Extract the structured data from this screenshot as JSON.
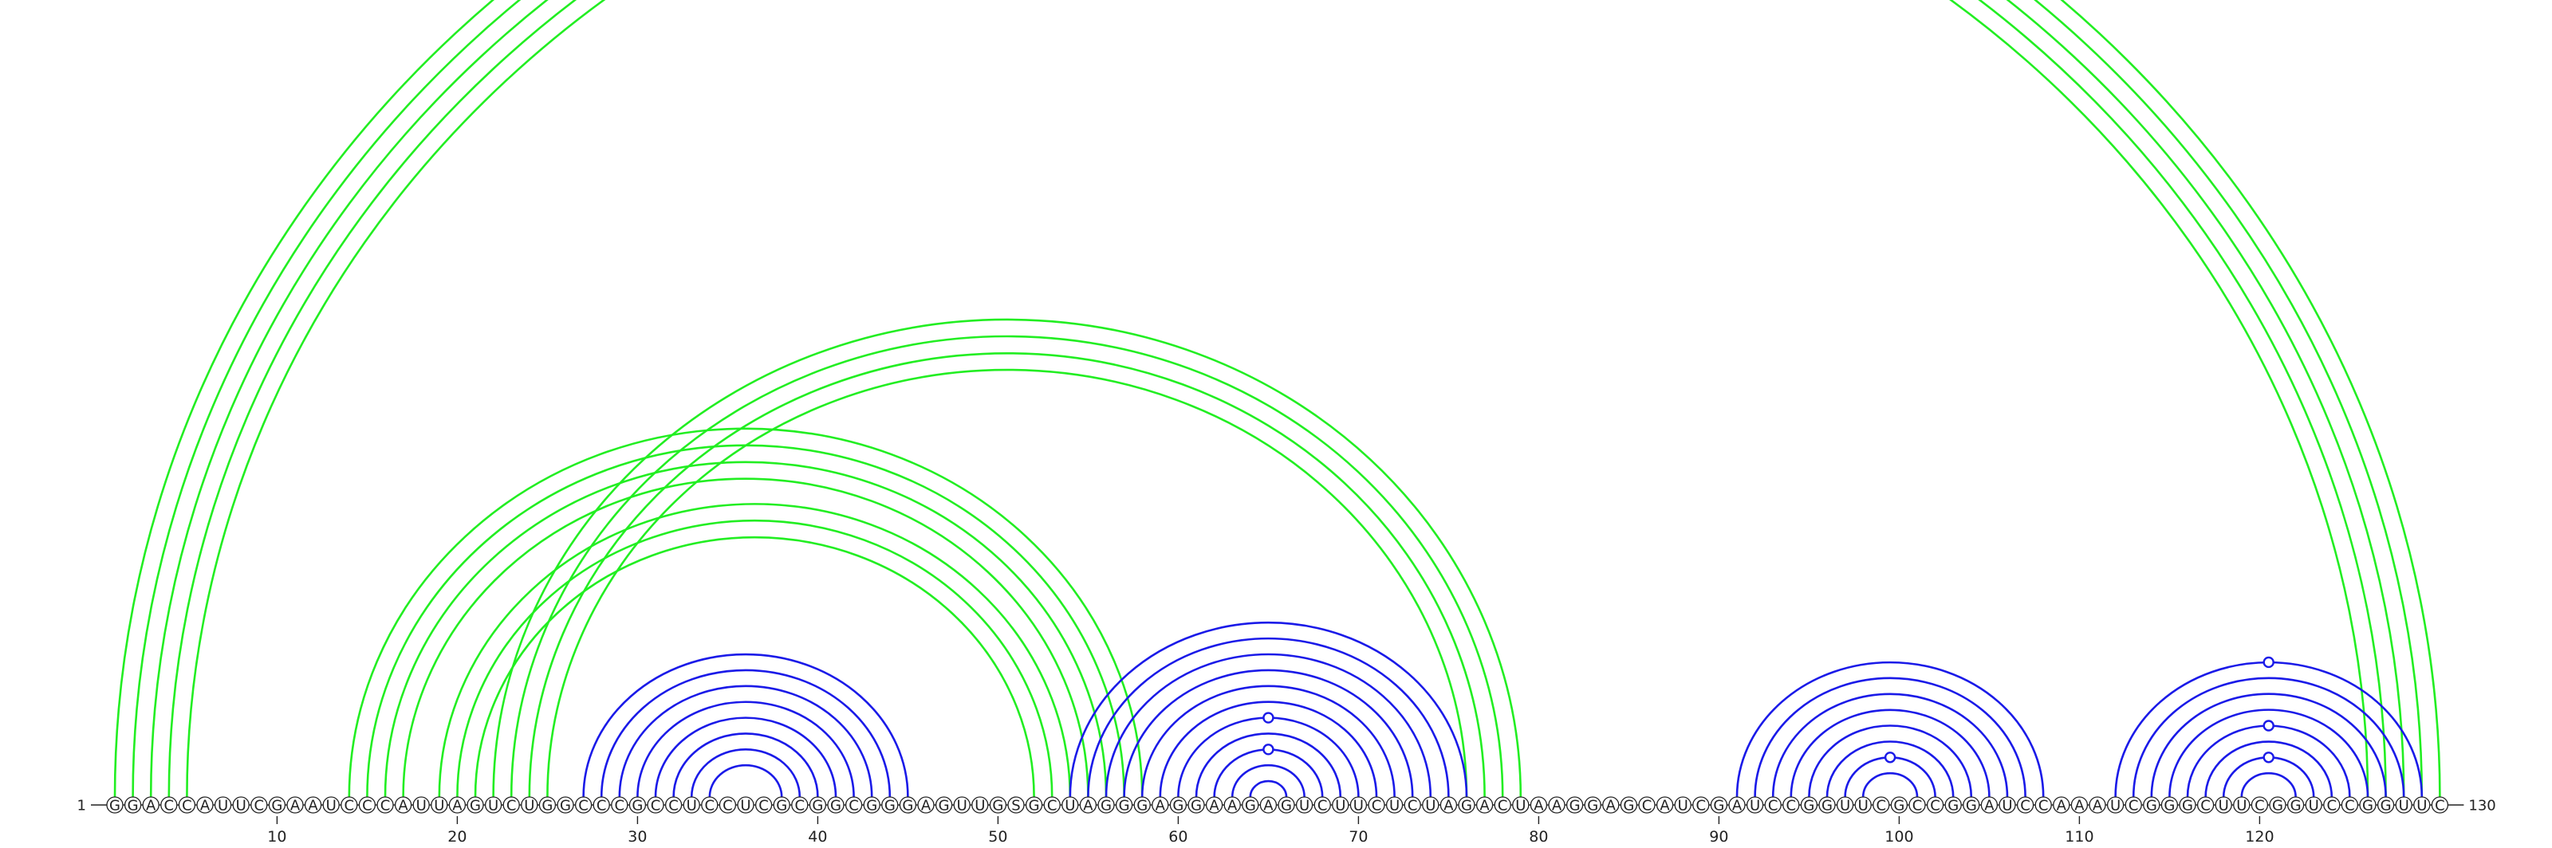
{
  "diagram": {
    "type": "rna-arc-diagram",
    "start_label": "1",
    "end_label": "130",
    "sequence": "GGACCAUUCGAAUCCCAUUAGUCUGGCCCGCCUCCUCGCGGCGGGAGUUGSGCUAGGGAGGAAGAGUCUUCUCUAGACUAAGGAGCAUCGAUCCGGUUCGCCGGAUCCAAAUCGGGCUUCGGUCCGGUUC",
    "ticks": [
      10,
      20,
      30,
      40,
      50,
      60,
      70,
      80,
      90,
      100,
      110,
      120
    ],
    "colors": {
      "green": "#22ee22",
      "blue": "#1a1ae8",
      "ink": "#222222",
      "nucleotide_fill": "#ffffff"
    },
    "helices": [
      {
        "color": "green",
        "pairs": [
          [
            1,
            130
          ],
          [
            2,
            129
          ],
          [
            3,
            128
          ],
          [
            4,
            127
          ],
          [
            5,
            126
          ]
        ]
      },
      {
        "color": "green",
        "pairs": [
          [
            14,
            58
          ],
          [
            15,
            57
          ],
          [
            16,
            56
          ],
          [
            17,
            55
          ]
        ]
      },
      {
        "color": "green",
        "pairs": [
          [
            19,
            54
          ],
          [
            20,
            53
          ],
          [
            21,
            52
          ]
        ]
      },
      {
        "color": "green",
        "pairs": [
          [
            22,
            79
          ],
          [
            23,
            78
          ],
          [
            24,
            77
          ],
          [
            25,
            76
          ]
        ]
      },
      {
        "color": "blue",
        "pairs": [
          [
            27,
            45
          ],
          [
            28,
            44
          ],
          [
            29,
            43
          ],
          [
            30,
            42
          ],
          [
            31,
            41
          ],
          [
            32,
            40
          ],
          [
            33,
            39
          ],
          [
            34,
            38
          ]
        ]
      },
      {
        "color": "blue",
        "pairs": [
          [
            54,
            76
          ],
          [
            55,
            75
          ],
          [
            56,
            74
          ],
          [
            57,
            73
          ],
          [
            58,
            72
          ],
          [
            59,
            71
          ],
          [
            60,
            70
          ],
          [
            61,
            69
          ],
          [
            62,
            68
          ],
          [
            63,
            67
          ],
          [
            64,
            66
          ]
        ]
      },
      {
        "color": "blue",
        "pairs": [
          [
            91,
            108
          ],
          [
            92,
            107
          ],
          [
            93,
            106
          ],
          [
            94,
            105
          ],
          [
            95,
            104
          ],
          [
            96,
            103
          ],
          [
            97,
            102
          ],
          [
            98,
            101
          ]
        ]
      },
      {
        "color": "blue",
        "pairs": [
          [
            112,
            129
          ],
          [
            113,
            128
          ],
          [
            114,
            127
          ],
          [
            115,
            126
          ],
          [
            116,
            125
          ],
          [
            117,
            124
          ],
          [
            118,
            123
          ],
          [
            119,
            122
          ]
        ]
      }
    ],
    "markers": [
      {
        "color": "green",
        "pair": [
          1,
          130
        ]
      },
      {
        "color": "blue",
        "pair": [
          60,
          70
        ]
      },
      {
        "color": "blue",
        "pair": [
          62,
          68
        ]
      },
      {
        "color": "blue",
        "pair": [
          97,
          102
        ]
      },
      {
        "color": "blue",
        "pair": [
          112,
          129
        ]
      },
      {
        "color": "blue",
        "pair": [
          116,
          125
        ]
      },
      {
        "color": "blue",
        "pair": [
          118,
          123
        ]
      }
    ]
  }
}
